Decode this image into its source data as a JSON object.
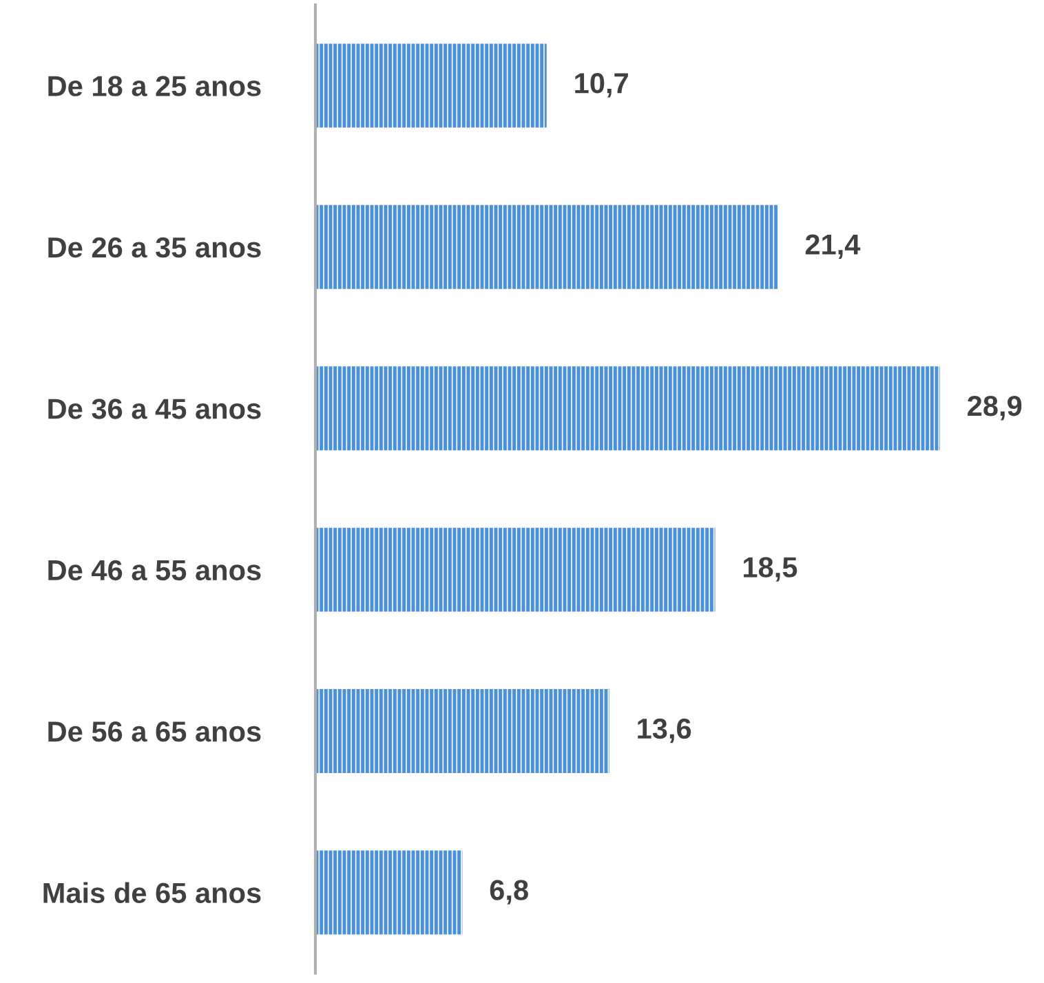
{
  "chart_data": {
    "type": "bar",
    "orientation": "horizontal",
    "categories": [
      "De 18 a 25 anos",
      "De 26 a 35 anos",
      "De 36 a 45 anos",
      "De 46 a 55 anos",
      "De 56 a 65 anos",
      "Mais de 65 anos"
    ],
    "values": [
      10.7,
      21.4,
      28.9,
      18.5,
      13.6,
      6.8
    ],
    "value_labels": [
      "10,7",
      "21,4",
      "28,9",
      "18,5",
      "13,6",
      "6,8"
    ],
    "color": "#4a90e2",
    "grid": false,
    "legend": false
  }
}
